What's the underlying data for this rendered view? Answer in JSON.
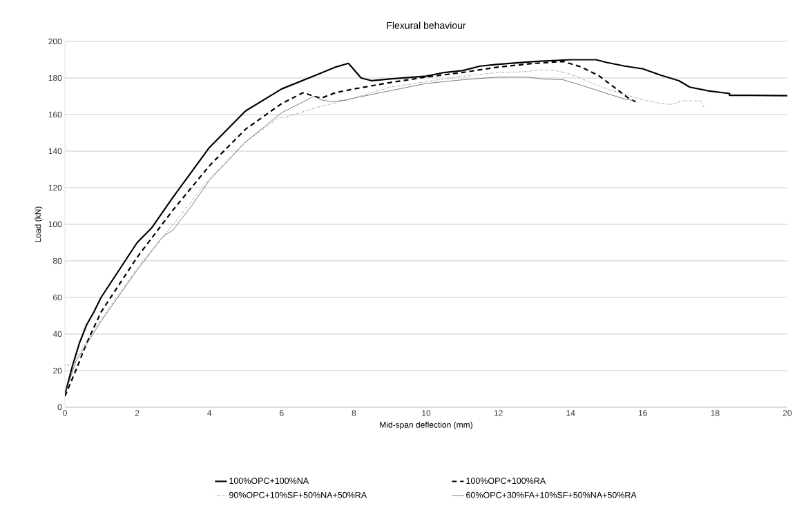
{
  "chart_data": {
    "type": "line",
    "title": "Flexural behaviour",
    "xlabel": "Mid-span deflection (mm)",
    "ylabel": "Load (kN)",
    "xlim": [
      0,
      20
    ],
    "ylim": [
      0,
      200
    ],
    "xticks": [
      0,
      2,
      4,
      6,
      8,
      10,
      12,
      14,
      16,
      18,
      20
    ],
    "yticks": [
      0,
      20,
      40,
      60,
      80,
      100,
      120,
      140,
      160,
      180,
      200
    ],
    "grid": "y",
    "legend": "bottom",
    "marker": "none",
    "series": [
      {
        "name": "100%OPC+100%NA",
        "color": "#000000",
        "line_style": "solid",
        "x": [
          0,
          0.2,
          0.4,
          0.6,
          0.8,
          1.0,
          1.5,
          2,
          2.4,
          3,
          4,
          5,
          6,
          7,
          7.5,
          7.85,
          8.2,
          8.5,
          9,
          10,
          10.5,
          11,
          11.5,
          12,
          13,
          14,
          14.7,
          15,
          15.5,
          16,
          16.5,
          17,
          17.3,
          17.8,
          18.4,
          18.4,
          19,
          20
        ],
        "values": [
          7,
          22,
          35,
          45,
          52,
          60,
          75,
          90,
          98,
          115,
          142,
          162,
          174,
          182,
          186,
          188,
          180,
          178.5,
          179.5,
          181,
          183,
          184,
          186.5,
          187.5,
          189,
          190,
          190,
          188.5,
          186.5,
          185,
          181.5,
          178.5,
          175,
          173,
          171.5,
          170.5,
          170.5,
          170.3
        ]
      },
      {
        "name": "100%OPC+100%RA",
        "color": "#000000",
        "line_style": "dashed",
        "x": [
          0,
          0.3,
          0.6,
          1,
          2,
          3,
          4,
          5,
          6,
          6.6,
          6.9,
          7.1,
          7.5,
          8,
          9,
          10,
          11,
          12,
          13,
          13.8,
          14.3,
          14.8,
          15.2,
          15.6,
          15.8
        ],
        "values": [
          6,
          20,
          35,
          52,
          82,
          108,
          132,
          152,
          166,
          172,
          170,
          169,
          172,
          174,
          177.5,
          180.5,
          183,
          186,
          188,
          189,
          186,
          181,
          175,
          169,
          167
        ]
      },
      {
        "name": "90%OPC+10%SF+50%NA+50%RA",
        "color": "#7f7f7f",
        "line_style": "dotted",
        "x": [
          0,
          0.2,
          0.4,
          1,
          2,
          3,
          4,
          5,
          5.9,
          6.1,
          7,
          8,
          9,
          10,
          11,
          12,
          12.8,
          13.1,
          13.6,
          14,
          14.5,
          15,
          15.5,
          16,
          16.5,
          16.8,
          17.1,
          17.6,
          17.7
        ],
        "values": [
          23,
          23,
          30,
          48,
          76,
          100,
          125,
          145,
          158,
          158.5,
          164,
          169,
          175,
          178,
          181,
          183,
          183.5,
          184.5,
          184,
          182,
          178,
          174,
          171,
          168,
          166,
          165.5,
          167.5,
          167.5,
          164
        ]
      },
      {
        "name": "60%OPC+30%FA+10%SF+50%NA+50%RA",
        "color": "#595959",
        "line_style": "solid",
        "x": [
          0,
          0.3,
          1,
          2,
          2.7,
          3,
          3.5,
          4,
          5,
          6,
          6.5,
          6.9,
          7.1,
          7.4,
          7.8,
          8,
          9,
          10,
          11,
          12,
          12.8,
          13.2,
          13.8,
          14.3,
          15,
          15.5,
          15.8
        ],
        "values": [
          7,
          25,
          47,
          75,
          93,
          97,
          110,
          124,
          145,
          161,
          166,
          170,
          168,
          167,
          168,
          169,
          173,
          177,
          179,
          180.5,
          180.5,
          179.5,
          179,
          176,
          171.5,
          168.5,
          167.5
        ]
      }
    ]
  }
}
